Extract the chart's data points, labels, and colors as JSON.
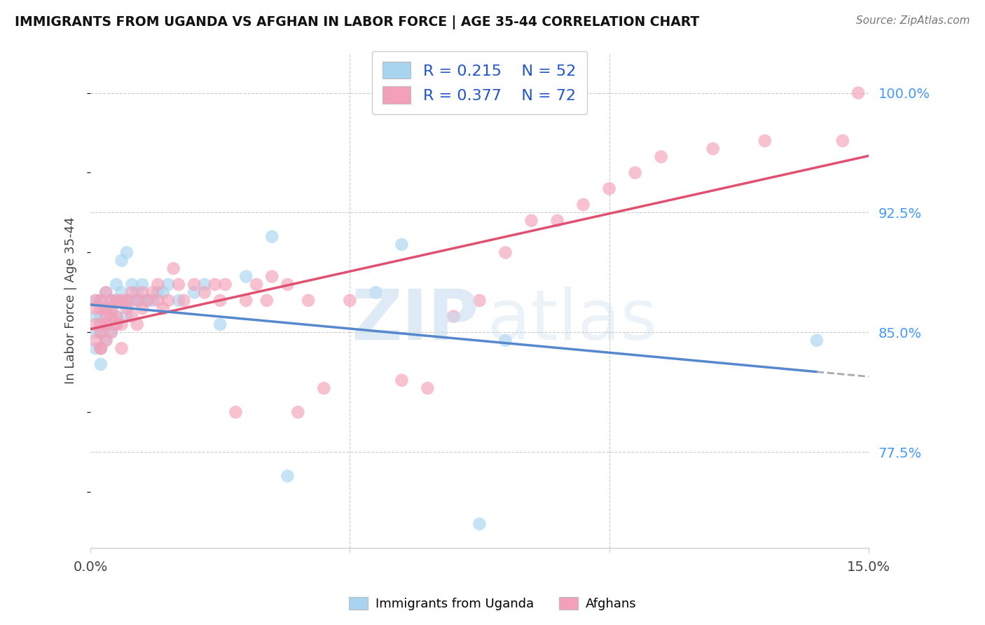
{
  "title": "IMMIGRANTS FROM UGANDA VS AFGHAN IN LABOR FORCE | AGE 35-44 CORRELATION CHART",
  "source": "Source: ZipAtlas.com",
  "ylabel": "In Labor Force | Age 35-44",
  "color_uganda": "#a8d4f0",
  "color_afghan": "#f4a0b8",
  "trendline_uganda": "#5588cc",
  "trendline_afghan": "#e05070",
  "trendline_uganda_ext": "#aaaaaa",
  "xlim": [
    0.0,
    0.15
  ],
  "ylim": [
    0.715,
    1.025
  ],
  "uganda_x": [
    0.001,
    0.001,
    0.001,
    0.001,
    0.002,
    0.002,
    0.002,
    0.002,
    0.002,
    0.002,
    0.003,
    0.003,
    0.003,
    0.003,
    0.003,
    0.004,
    0.004,
    0.004,
    0.004,
    0.005,
    0.005,
    0.005,
    0.005,
    0.006,
    0.006,
    0.006,
    0.007,
    0.007,
    0.007,
    0.008,
    0.008,
    0.009,
    0.009,
    0.01,
    0.01,
    0.011,
    0.012,
    0.013,
    0.014,
    0.015,
    0.017,
    0.02,
    0.022,
    0.025,
    0.03,
    0.035,
    0.038,
    0.055,
    0.06,
    0.075,
    0.08,
    0.14
  ],
  "uganda_y": [
    0.85,
    0.86,
    0.87,
    0.84,
    0.85,
    0.86,
    0.87,
    0.84,
    0.855,
    0.83,
    0.865,
    0.875,
    0.855,
    0.845,
    0.86,
    0.865,
    0.87,
    0.85,
    0.86,
    0.87,
    0.855,
    0.88,
    0.86,
    0.875,
    0.895,
    0.87,
    0.87,
    0.86,
    0.9,
    0.87,
    0.88,
    0.87,
    0.875,
    0.87,
    0.88,
    0.87,
    0.87,
    0.875,
    0.875,
    0.88,
    0.87,
    0.875,
    0.88,
    0.855,
    0.885,
    0.91,
    0.76,
    0.875,
    0.905,
    0.73,
    0.845,
    0.845
  ],
  "afghan_x": [
    0.001,
    0.001,
    0.001,
    0.001,
    0.002,
    0.002,
    0.002,
    0.002,
    0.002,
    0.002,
    0.003,
    0.003,
    0.003,
    0.003,
    0.003,
    0.004,
    0.004,
    0.004,
    0.004,
    0.005,
    0.005,
    0.005,
    0.006,
    0.006,
    0.006,
    0.007,
    0.007,
    0.008,
    0.008,
    0.009,
    0.009,
    0.01,
    0.01,
    0.011,
    0.012,
    0.013,
    0.013,
    0.014,
    0.015,
    0.016,
    0.017,
    0.018,
    0.02,
    0.022,
    0.024,
    0.025,
    0.026,
    0.028,
    0.03,
    0.032,
    0.034,
    0.035,
    0.038,
    0.04,
    0.042,
    0.045,
    0.05,
    0.06,
    0.065,
    0.07,
    0.075,
    0.08,
    0.085,
    0.09,
    0.095,
    0.1,
    0.105,
    0.11,
    0.12,
    0.13,
    0.145,
    0.148
  ],
  "afghan_y": [
    0.855,
    0.865,
    0.845,
    0.87,
    0.855,
    0.865,
    0.84,
    0.87,
    0.85,
    0.84,
    0.865,
    0.855,
    0.875,
    0.86,
    0.845,
    0.86,
    0.87,
    0.85,
    0.865,
    0.855,
    0.87,
    0.86,
    0.87,
    0.855,
    0.84,
    0.865,
    0.87,
    0.86,
    0.875,
    0.87,
    0.855,
    0.875,
    0.865,
    0.87,
    0.875,
    0.87,
    0.88,
    0.865,
    0.87,
    0.89,
    0.88,
    0.87,
    0.88,
    0.875,
    0.88,
    0.87,
    0.88,
    0.8,
    0.87,
    0.88,
    0.87,
    0.885,
    0.88,
    0.8,
    0.87,
    0.815,
    0.87,
    0.82,
    0.815,
    0.86,
    0.87,
    0.9,
    0.92,
    0.92,
    0.93,
    0.94,
    0.95,
    0.96,
    0.965,
    0.97,
    0.97,
    1.0
  ]
}
